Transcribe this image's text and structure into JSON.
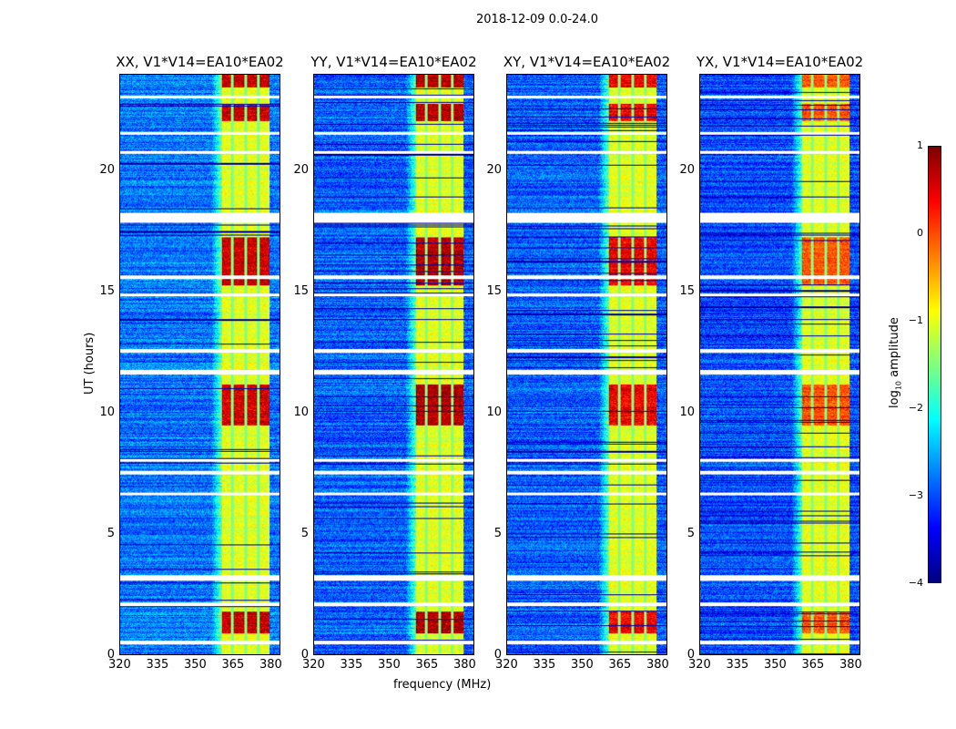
{
  "chart_data": {
    "type": "heatmap",
    "title": "2018-12-09 0.0-24.0",
    "xlabel": "frequency (MHz)",
    "ylabel": "UT (hours)",
    "xlim": [
      320,
      384
    ],
    "ylim": [
      0,
      24
    ],
    "xticks": [
      "320",
      "335",
      "350",
      "365",
      "380"
    ],
    "xtick_values": [
      320,
      335,
      350,
      365,
      380
    ],
    "yticks": [
      "0",
      "5",
      "10",
      "15",
      "20"
    ],
    "ytick_values": [
      0,
      5,
      10,
      15,
      20
    ],
    "colormap": "jet",
    "colorbar": {
      "label": "log",
      "label_sub": "10",
      "label_rest": " amplitude",
      "range": [
        -4,
        1
      ],
      "ticks": [
        "1",
        "0",
        "−1",
        "−2",
        "−3",
        "−4"
      ],
      "tick_values": [
        1,
        0,
        -1,
        -2,
        -3,
        -4
      ]
    },
    "band_mhz": [
      360.5,
      380
    ],
    "band_stripes_mhz": [
      364.8,
      370.2,
      375.3
    ],
    "flagged_hours": [
      [
        0.45,
        0.6
      ],
      [
        2.0,
        2.15
      ],
      [
        3.05,
        3.3
      ],
      [
        6.6,
        6.7
      ],
      [
        7.45,
        7.6
      ],
      [
        8.0,
        8.1
      ],
      [
        11.6,
        11.8
      ],
      [
        12.5,
        12.65
      ],
      [
        14.85,
        14.95
      ],
      [
        15.55,
        15.7
      ],
      [
        17.9,
        18.3
      ],
      [
        20.75,
        20.85
      ],
      [
        21.55,
        21.65
      ],
      [
        23.05,
        23.15
      ]
    ],
    "bright_events_hours": [
      [
        0.9,
        1.8
      ],
      [
        9.5,
        11.2
      ],
      [
        15.3,
        17.3
      ],
      [
        22.1,
        22.8
      ],
      [
        23.5,
        24
      ]
    ],
    "panels": [
      {
        "title": "XX, V1*V14=EA10*EA02",
        "event_strength": 1.0,
        "bg_level": -2.8
      },
      {
        "title": "YY, V1*V14=EA10*EA02",
        "event_strength": 1.1,
        "bg_level": -2.9
      },
      {
        "title": "XY, V1*V14=EA10*EA02",
        "event_strength": 0.9,
        "bg_level": -2.9
      },
      {
        "title": "YX, V1*V14=EA10*EA02",
        "event_strength": 0.6,
        "bg_level": -3.0
      }
    ]
  }
}
